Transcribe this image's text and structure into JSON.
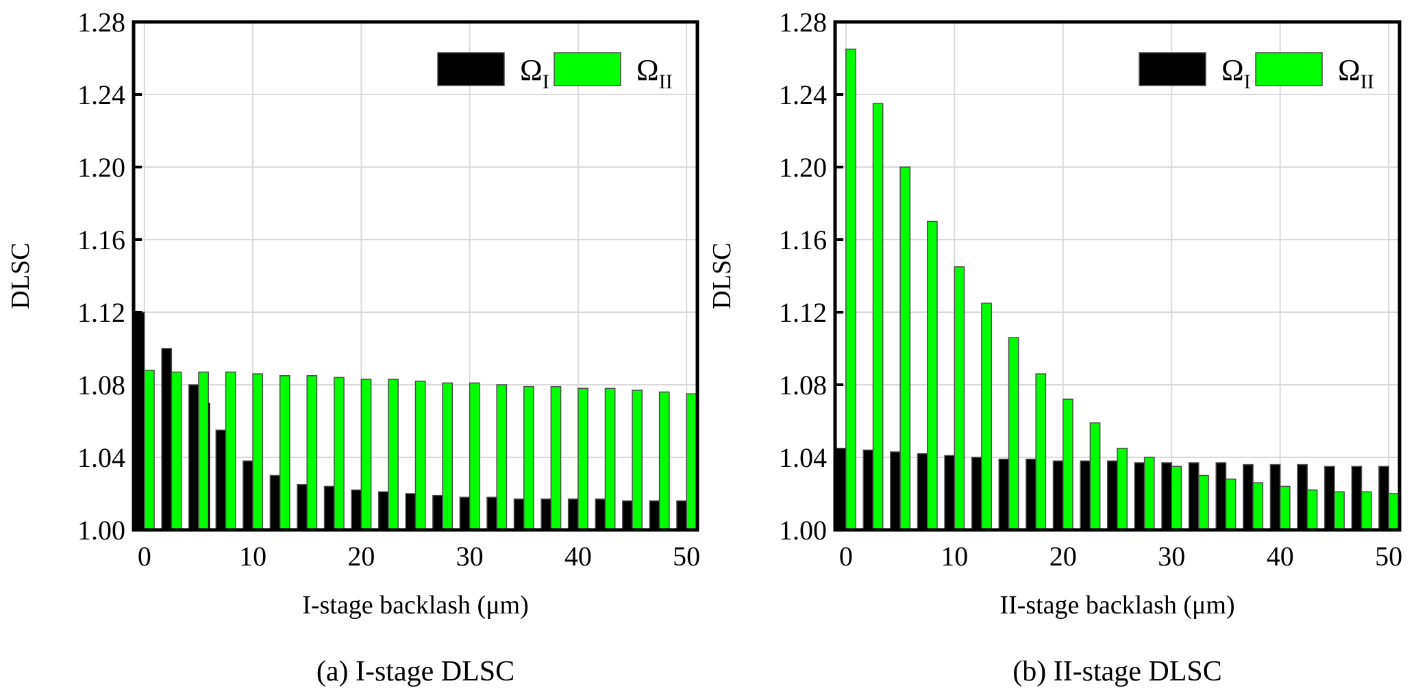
{
  "colors": {
    "omega_I": "#000000",
    "omega_II": "#00ff00",
    "bar_edge": "#4d4d4d",
    "grid": "#d9d9d9",
    "axis": "#000000"
  },
  "chart_data": [
    {
      "type": "bar",
      "panel": "a",
      "caption": "(a) I-stage DLSC",
      "xlabel": "I-stage backlash (μm)",
      "ylabel": "DLSC",
      "xlim": [
        -1,
        51
      ],
      "ylim": [
        1.0,
        1.28
      ],
      "xticks": [
        0,
        10,
        20,
        30,
        40,
        50
      ],
      "xtick_labels": [
        "0",
        "10",
        "20",
        "30",
        "40",
        "50"
      ],
      "yticks": [
        1.0,
        1.04,
        1.08,
        1.12,
        1.16,
        1.2,
        1.24,
        1.28
      ],
      "ytick_labels": [
        "1.00",
        "1.04",
        "1.08",
        "1.12",
        "1.16",
        "1.20",
        "1.24",
        "1.28"
      ],
      "grid": true,
      "legend": {
        "placement": "top-right",
        "entries": [
          {
            "base": "Ω",
            "sub": "I"
          },
          {
            "base": "Ω",
            "sub": "II"
          }
        ]
      },
      "x": [
        0,
        2.5,
        5,
        7.5,
        10,
        12.5,
        15,
        17.5,
        20,
        22.5,
        25,
        27.5,
        30,
        32.5,
        35,
        37.5,
        40,
        42.5,
        45,
        47.5,
        50
      ],
      "series": [
        {
          "name": "Ω_I",
          "values": [
            1.12,
            1.1,
            1.08,
            1.055,
            1.038,
            1.03,
            1.025,
            1.024,
            1.022,
            1.021,
            1.02,
            1.019,
            1.018,
            1.018,
            1.017,
            1.017,
            1.017,
            1.017,
            1.016,
            1.016,
            1.016
          ]
        },
        {
          "name": "Ω_II",
          "values": [
            1.088,
            1.087,
            1.087,
            1.087,
            1.086,
            1.085,
            1.085,
            1.084,
            1.083,
            1.083,
            1.082,
            1.081,
            1.081,
            1.08,
            1.079,
            1.079,
            1.078,
            1.078,
            1.077,
            1.076,
            1.075
          ]
        }
      ],
      "annotations": [
        {
          "series": "Ω_I",
          "x": 5,
          "value": 1.07,
          "note": "narrow overlapping black bar"
        }
      ]
    },
    {
      "type": "bar",
      "panel": "b",
      "caption": "(b) II-stage DLSC",
      "xlabel": "II-stage backlash (μm)",
      "ylabel": "DLSC",
      "xlim": [
        -1,
        51
      ],
      "ylim": [
        1.0,
        1.28
      ],
      "xticks": [
        0,
        10,
        20,
        30,
        40,
        50
      ],
      "xtick_labels": [
        "0",
        "10",
        "20",
        "30",
        "40",
        "50"
      ],
      "yticks": [
        1.0,
        1.04,
        1.08,
        1.12,
        1.16,
        1.2,
        1.24,
        1.28
      ],
      "ytick_labels": [
        "1.00",
        "1.04",
        "1.08",
        "1.12",
        "1.16",
        "1.20",
        "1.24",
        "1.28"
      ],
      "grid": true,
      "legend": {
        "placement": "top-right",
        "entries": [
          {
            "base": "Ω",
            "sub": "I"
          },
          {
            "base": "Ω",
            "sub": "II"
          }
        ]
      },
      "x": [
        0,
        2.5,
        5,
        7.5,
        10,
        12.5,
        15,
        17.5,
        20,
        22.5,
        25,
        27.5,
        30,
        32.5,
        35,
        37.5,
        40,
        42.5,
        45,
        47.5,
        50
      ],
      "series": [
        {
          "name": "Ω_I",
          "values": [
            1.045,
            1.044,
            1.043,
            1.042,
            1.041,
            1.04,
            1.039,
            1.039,
            1.038,
            1.038,
            1.038,
            1.037,
            1.037,
            1.037,
            1.037,
            1.036,
            1.036,
            1.036,
            1.035,
            1.035,
            1.035
          ]
        },
        {
          "name": "Ω_II",
          "values": [
            1.265,
            1.235,
            1.2,
            1.17,
            1.145,
            1.125,
            1.106,
            1.086,
            1.072,
            1.059,
            1.045,
            1.04,
            1.035,
            1.03,
            1.028,
            1.026,
            1.024,
            1.022,
            1.021,
            1.021,
            1.02
          ]
        }
      ]
    }
  ]
}
